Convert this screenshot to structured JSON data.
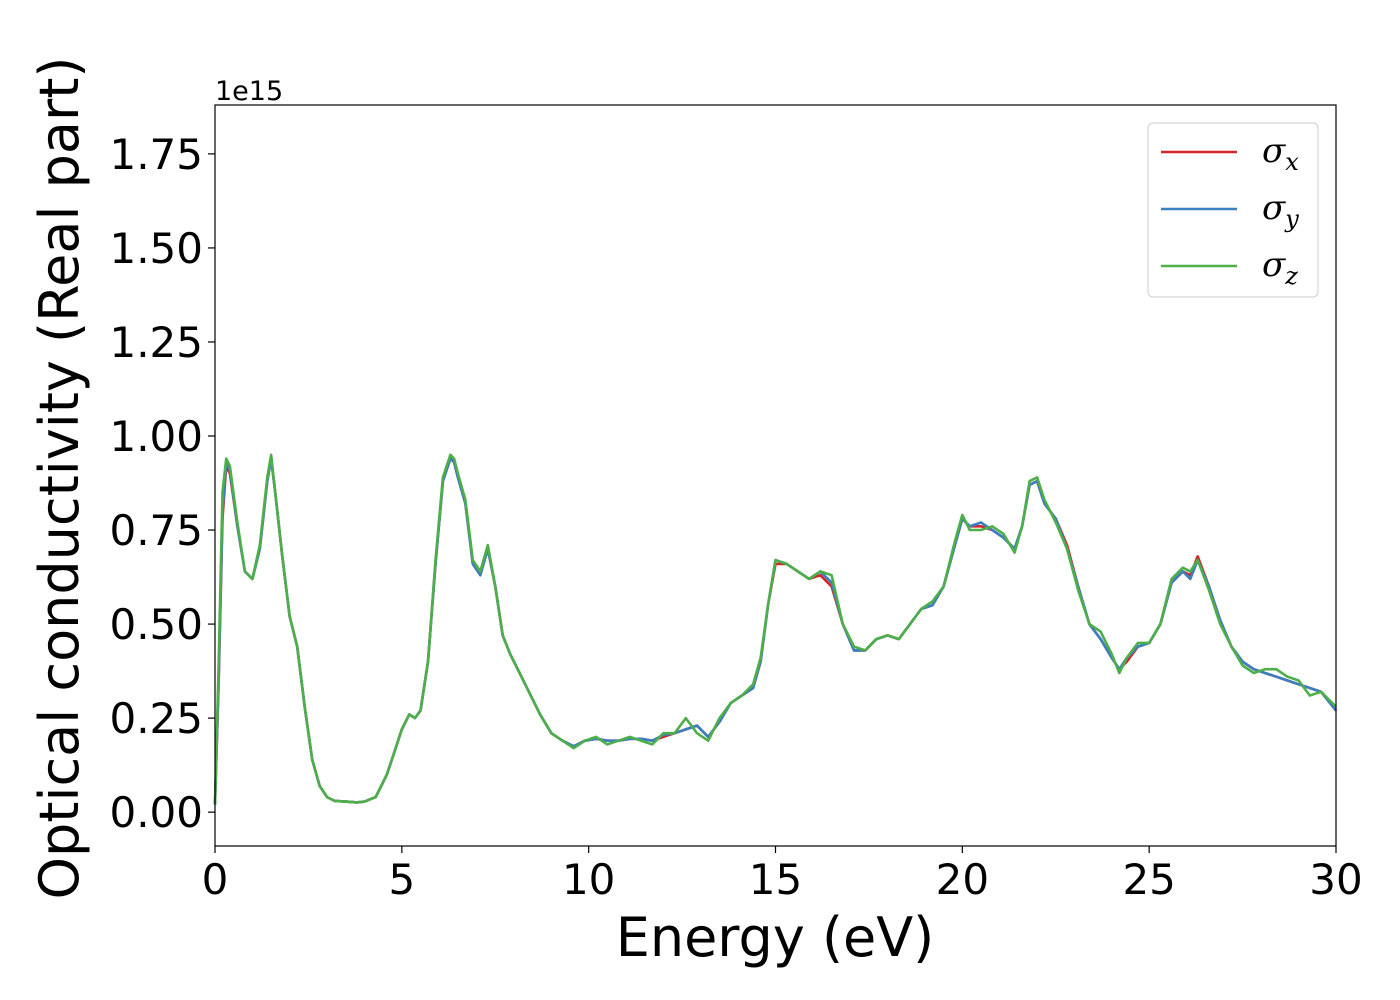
{
  "chart_data": {
    "type": "line",
    "xlabel": "Energy (eV)",
    "ylabel": "Optical conductivity (Real part)",
    "y_offset_label": "1e15",
    "xlim": [
      0,
      30
    ],
    "ylim": [
      -0.09,
      1.88
    ],
    "x_ticks": [
      0,
      5,
      10,
      15,
      20,
      25,
      30
    ],
    "x_tick_labels": [
      "0",
      "5",
      "10",
      "15",
      "20",
      "25",
      "30"
    ],
    "y_ticks": [
      0.0,
      0.25,
      0.5,
      0.75,
      1.0,
      1.25,
      1.5,
      1.75
    ],
    "y_tick_labels": [
      "0.00",
      "0.25",
      "0.50",
      "0.75",
      "1.00",
      "1.25",
      "1.50",
      "1.75"
    ],
    "grid": false,
    "legend_position": "top-right",
    "series": [
      {
        "name": "σ",
        "subscript": "x",
        "color": "#d62728",
        "x": [
          0,
          0.1,
          0.2,
          0.3,
          0.4,
          0.6,
          0.8,
          1.0,
          1.2,
          1.4,
          1.5,
          1.6,
          1.8,
          2.0,
          2.2,
          2.4,
          2.6,
          2.8,
          3.0,
          3.2,
          3.5,
          3.8,
          4.0,
          4.3,
          4.6,
          4.8,
          5.0,
          5.2,
          5.35,
          5.5,
          5.7,
          5.9,
          6.1,
          6.3,
          6.4,
          6.5,
          6.7,
          6.9,
          7.1,
          7.3,
          7.5,
          7.7,
          7.9,
          8.1,
          8.4,
          8.7,
          9.0,
          9.3,
          9.6,
          9.9,
          10.2,
          10.5,
          10.8,
          11.1,
          11.4,
          11.7,
          12.0,
          12.3,
          12.6,
          12.9,
          13.2,
          13.5,
          13.8,
          14.1,
          14.4,
          14.6,
          14.8,
          15.0,
          15.3,
          15.6,
          15.9,
          16.2,
          16.5,
          16.8,
          17.1,
          17.4,
          17.7,
          18.0,
          18.3,
          18.6,
          18.9,
          19.2,
          19.5,
          19.8,
          20.0,
          20.2,
          20.5,
          20.8,
          21.1,
          21.4,
          21.6,
          21.8,
          22.0,
          22.2,
          22.5,
          22.8,
          23.1,
          23.4,
          23.7,
          24.0,
          24.2,
          24.4,
          24.7,
          25.0,
          25.3,
          25.6,
          25.9,
          26.1,
          26.3,
          26.6,
          26.9,
          27.2,
          27.5,
          27.8,
          28.1,
          28.4,
          28.7,
          29.0,
          29.3,
          29.6,
          30.0
        ],
        "y": [
          0.02,
          0.35,
          0.78,
          0.92,
          0.9,
          0.76,
          0.64,
          0.62,
          0.7,
          0.88,
          0.94,
          0.86,
          0.68,
          0.52,
          0.44,
          0.28,
          0.14,
          0.07,
          0.04,
          0.03,
          0.028,
          0.026,
          0.028,
          0.04,
          0.1,
          0.16,
          0.22,
          0.26,
          0.25,
          0.27,
          0.4,
          0.66,
          0.88,
          0.94,
          0.93,
          0.89,
          0.82,
          0.66,
          0.63,
          0.7,
          0.6,
          0.47,
          0.42,
          0.38,
          0.32,
          0.26,
          0.21,
          0.19,
          0.175,
          0.19,
          0.195,
          0.19,
          0.19,
          0.195,
          0.195,
          0.19,
          0.2,
          0.21,
          0.22,
          0.23,
          0.2,
          0.24,
          0.29,
          0.31,
          0.33,
          0.4,
          0.55,
          0.66,
          0.66,
          0.64,
          0.62,
          0.63,
          0.6,
          0.5,
          0.43,
          0.43,
          0.46,
          0.47,
          0.46,
          0.5,
          0.54,
          0.55,
          0.6,
          0.71,
          0.78,
          0.76,
          0.76,
          0.75,
          0.73,
          0.7,
          0.76,
          0.87,
          0.88,
          0.82,
          0.78,
          0.71,
          0.6,
          0.5,
          0.46,
          0.41,
          0.38,
          0.4,
          0.44,
          0.45,
          0.5,
          0.61,
          0.64,
          0.63,
          0.68,
          0.6,
          0.51,
          0.44,
          0.4,
          0.38,
          0.37,
          0.36,
          0.35,
          0.34,
          0.33,
          0.32,
          0.27
        ]
      },
      {
        "name": "σ",
        "subscript": "y",
        "color": "#3a7fc0",
        "x": [
          0,
          0.1,
          0.2,
          0.3,
          0.4,
          0.6,
          0.8,
          1.0,
          1.2,
          1.4,
          1.5,
          1.6,
          1.8,
          2.0,
          2.2,
          2.4,
          2.6,
          2.8,
          3.0,
          3.2,
          3.5,
          3.8,
          4.0,
          4.3,
          4.6,
          4.8,
          5.0,
          5.2,
          5.35,
          5.5,
          5.7,
          5.9,
          6.1,
          6.3,
          6.4,
          6.5,
          6.7,
          6.9,
          7.1,
          7.3,
          7.5,
          7.7,
          7.9,
          8.1,
          8.4,
          8.7,
          9.0,
          9.3,
          9.6,
          9.9,
          10.2,
          10.5,
          10.8,
          11.1,
          11.4,
          11.7,
          12.0,
          12.3,
          12.6,
          12.9,
          13.2,
          13.5,
          13.8,
          14.1,
          14.4,
          14.6,
          14.8,
          15.0,
          15.3,
          15.6,
          15.9,
          16.2,
          16.5,
          16.8,
          17.1,
          17.4,
          17.7,
          18.0,
          18.3,
          18.6,
          18.9,
          19.2,
          19.5,
          19.8,
          20.0,
          20.2,
          20.5,
          20.8,
          21.1,
          21.4,
          21.6,
          21.8,
          22.0,
          22.2,
          22.5,
          22.8,
          23.1,
          23.4,
          23.7,
          24.0,
          24.2,
          24.4,
          24.7,
          25.0,
          25.3,
          25.6,
          25.9,
          26.1,
          26.3,
          26.6,
          26.9,
          27.2,
          27.5,
          27.8,
          28.1,
          28.4,
          28.7,
          29.0,
          29.3,
          29.6,
          30.0
        ],
        "y": [
          0.02,
          0.36,
          0.8,
          0.93,
          0.91,
          0.76,
          0.64,
          0.62,
          0.7,
          0.88,
          0.94,
          0.86,
          0.68,
          0.52,
          0.44,
          0.28,
          0.14,
          0.07,
          0.04,
          0.03,
          0.028,
          0.026,
          0.028,
          0.04,
          0.1,
          0.16,
          0.22,
          0.26,
          0.25,
          0.27,
          0.4,
          0.66,
          0.88,
          0.94,
          0.93,
          0.89,
          0.82,
          0.66,
          0.63,
          0.7,
          0.6,
          0.47,
          0.42,
          0.38,
          0.32,
          0.26,
          0.21,
          0.19,
          0.175,
          0.19,
          0.195,
          0.19,
          0.19,
          0.195,
          0.195,
          0.19,
          0.205,
          0.21,
          0.22,
          0.23,
          0.2,
          0.24,
          0.29,
          0.31,
          0.33,
          0.4,
          0.55,
          0.67,
          0.66,
          0.64,
          0.62,
          0.64,
          0.61,
          0.5,
          0.43,
          0.43,
          0.46,
          0.47,
          0.46,
          0.5,
          0.54,
          0.55,
          0.6,
          0.71,
          0.78,
          0.76,
          0.77,
          0.75,
          0.73,
          0.7,
          0.76,
          0.87,
          0.88,
          0.82,
          0.78,
          0.7,
          0.6,
          0.5,
          0.46,
          0.41,
          0.38,
          0.41,
          0.44,
          0.45,
          0.5,
          0.61,
          0.64,
          0.62,
          0.67,
          0.6,
          0.51,
          0.44,
          0.4,
          0.38,
          0.37,
          0.36,
          0.35,
          0.34,
          0.33,
          0.32,
          0.27
        ]
      },
      {
        "name": "σ",
        "subscript": "z",
        "color": "#4daf4a",
        "x": [
          0,
          0.1,
          0.2,
          0.3,
          0.4,
          0.6,
          0.8,
          1.0,
          1.2,
          1.4,
          1.5,
          1.6,
          1.8,
          2.0,
          2.2,
          2.4,
          2.6,
          2.8,
          3.0,
          3.2,
          3.5,
          3.8,
          4.0,
          4.3,
          4.6,
          4.8,
          5.0,
          5.2,
          5.35,
          5.5,
          5.7,
          5.9,
          6.1,
          6.3,
          6.4,
          6.5,
          6.7,
          6.9,
          7.1,
          7.3,
          7.5,
          7.7,
          7.9,
          8.1,
          8.4,
          8.7,
          9.0,
          9.3,
          9.6,
          9.9,
          10.2,
          10.5,
          10.8,
          11.1,
          11.4,
          11.7,
          12.0,
          12.3,
          12.6,
          12.9,
          13.2,
          13.5,
          13.8,
          14.1,
          14.4,
          14.6,
          14.8,
          15.0,
          15.3,
          15.6,
          15.9,
          16.2,
          16.5,
          16.8,
          17.1,
          17.4,
          17.7,
          18.0,
          18.3,
          18.6,
          18.9,
          19.2,
          19.5,
          19.8,
          20.0,
          20.2,
          20.5,
          20.8,
          21.1,
          21.4,
          21.6,
          21.8,
          22.0,
          22.2,
          22.5,
          22.8,
          23.1,
          23.4,
          23.7,
          24.0,
          24.2,
          24.4,
          24.7,
          25.0,
          25.3,
          25.6,
          25.9,
          26.1,
          26.3,
          26.6,
          26.9,
          27.2,
          27.5,
          27.8,
          28.1,
          28.4,
          28.7,
          29.0,
          29.3,
          29.6,
          30.0
        ],
        "y": [
          0.02,
          0.4,
          0.85,
          0.94,
          0.92,
          0.77,
          0.64,
          0.62,
          0.71,
          0.89,
          0.95,
          0.86,
          0.68,
          0.52,
          0.44,
          0.28,
          0.14,
          0.07,
          0.04,
          0.03,
          0.028,
          0.026,
          0.028,
          0.04,
          0.1,
          0.16,
          0.22,
          0.26,
          0.25,
          0.27,
          0.4,
          0.67,
          0.89,
          0.95,
          0.94,
          0.9,
          0.83,
          0.67,
          0.64,
          0.71,
          0.6,
          0.47,
          0.42,
          0.38,
          0.32,
          0.26,
          0.21,
          0.19,
          0.17,
          0.19,
          0.2,
          0.18,
          0.19,
          0.2,
          0.19,
          0.18,
          0.21,
          0.21,
          0.25,
          0.21,
          0.19,
          0.25,
          0.29,
          0.31,
          0.34,
          0.41,
          0.55,
          0.67,
          0.66,
          0.64,
          0.62,
          0.64,
          0.63,
          0.5,
          0.44,
          0.43,
          0.46,
          0.47,
          0.46,
          0.5,
          0.54,
          0.56,
          0.6,
          0.72,
          0.79,
          0.75,
          0.75,
          0.76,
          0.74,
          0.69,
          0.76,
          0.88,
          0.89,
          0.83,
          0.77,
          0.7,
          0.59,
          0.5,
          0.48,
          0.42,
          0.37,
          0.41,
          0.45,
          0.45,
          0.5,
          0.62,
          0.65,
          0.64,
          0.67,
          0.59,
          0.5,
          0.44,
          0.39,
          0.37,
          0.38,
          0.38,
          0.36,
          0.35,
          0.31,
          0.32,
          0.28
        ]
      }
    ]
  }
}
